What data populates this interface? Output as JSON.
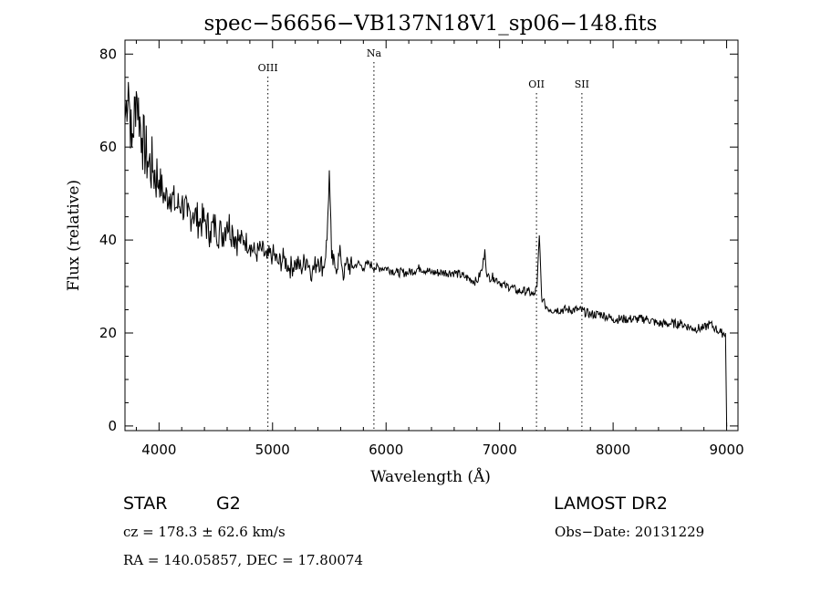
{
  "chart_data": {
    "type": "line",
    "title": "spec−56656−VB137N18V1_sp06−148.fits",
    "xlabel": "Wavelength (Å)",
    "ylabel": "Flux (relative)",
    "xlim": [
      3700,
      9100
    ],
    "ylim": [
      -1,
      83
    ],
    "x_ticks": [
      4000,
      5000,
      6000,
      7000,
      8000,
      9000
    ],
    "y_ticks": [
      0,
      20,
      40,
      60,
      80
    ],
    "grid": false,
    "lines": [
      {
        "label": "OIII",
        "x": 4959
      },
      {
        "label": "Na",
        "x": 5893
      },
      {
        "label": "OII",
        "x": 7325
      },
      {
        "label": "SII",
        "x": 7725
      }
    ],
    "series": [
      {
        "x": [
          3700,
          3730,
          3760,
          3800,
          3850,
          3900,
          3950,
          4000,
          4050,
          4100,
          4150,
          4200,
          4250,
          4300,
          4350,
          4400,
          4450,
          4500,
          4550,
          4600,
          4650,
          4700,
          4750,
          4800,
          4850,
          4900,
          4950,
          5000,
          5050,
          5100,
          5150,
          5200,
          5250,
          5300,
          5350,
          5400,
          5450,
          5480,
          5500,
          5520,
          5550,
          5600,
          5630,
          5650,
          5700,
          5750,
          5800,
          5850,
          5900,
          5950,
          6000,
          6100,
          6200,
          6300,
          6400,
          6500,
          6600,
          6700,
          6800,
          6850,
          6870,
          6890,
          6950,
          7000,
          7050,
          7100,
          7150,
          7200,
          7250,
          7300,
          7330,
          7350,
          7370,
          7380,
          7400,
          7450,
          7500,
          7600,
          7700,
          7800,
          7900,
          8000,
          8100,
          8200,
          8300,
          8400,
          8500,
          8600,
          8700,
          8800,
          8850,
          8900,
          8950,
          8990,
          9000,
          9005
        ],
        "y": [
          66,
          74,
          60,
          72,
          62,
          57,
          55,
          53,
          49,
          50,
          47,
          48,
          45,
          46,
          44,
          44,
          42,
          43,
          41,
          44,
          42,
          40,
          40,
          39,
          37,
          38,
          36,
          37,
          35,
          36,
          34,
          35,
          34,
          36,
          33,
          36,
          34,
          40,
          55,
          36,
          34,
          37,
          32,
          35,
          34,
          35,
          34,
          35,
          34,
          34,
          34,
          33,
          33,
          34,
          33,
          33,
          33,
          32,
          31,
          34,
          38,
          32,
          32,
          31,
          30,
          30,
          29,
          29,
          29,
          28,
          30,
          41,
          28,
          27,
          26,
          25,
          25,
          25,
          25,
          24,
          24,
          23,
          23,
          23,
          23,
          22,
          22,
          22,
          21,
          21,
          22,
          21,
          20,
          20,
          0,
          0
        ]
      }
    ],
    "info": {
      "class": "STAR",
      "subclass": "G2",
      "survey": "LAMOST DR2",
      "cz": "cz = 178.3 ± 62.6 km/s",
      "obs_date": "Obs−Date: 20131229",
      "coords": "RA = 140.05857, DEC =  17.80074"
    }
  }
}
